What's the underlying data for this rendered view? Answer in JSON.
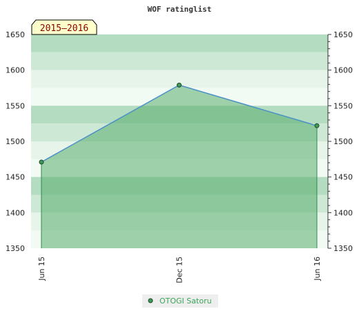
{
  "chart_data": {
    "type": "area",
    "title": "WOF ratinglist",
    "badge": "2015–2016",
    "xlabel": "",
    "ylabel": "",
    "categories": [
      "Jun 15",
      "Dec 15",
      "Jun 16"
    ],
    "x_positions": [
      0,
      1,
      2
    ],
    "ylim": [
      1350,
      1650
    ],
    "yticks": [
      1350,
      1400,
      1450,
      1500,
      1550,
      1600,
      1650
    ],
    "grid": true,
    "y_axis_both_sides": true,
    "legend_position": "bottom-center",
    "series": [
      {
        "name": "OTOGI Satoru",
        "values": [
          1471,
          1579,
          1522
        ]
      }
    ],
    "colors": {
      "line": "#4a90c8",
      "fill": "#5aad6e",
      "marker": "#3f9a5a",
      "drop_line": "#2e8b4a",
      "legend_text": "#3aa55a",
      "badge_bg": "#ffffcc",
      "badge_text": "#8b0000",
      "band_dark": "#b4dcc0",
      "band_mid": "#cde8d5",
      "band_light": "#e6f4ea",
      "band_lightest": "#f2faf4"
    }
  }
}
